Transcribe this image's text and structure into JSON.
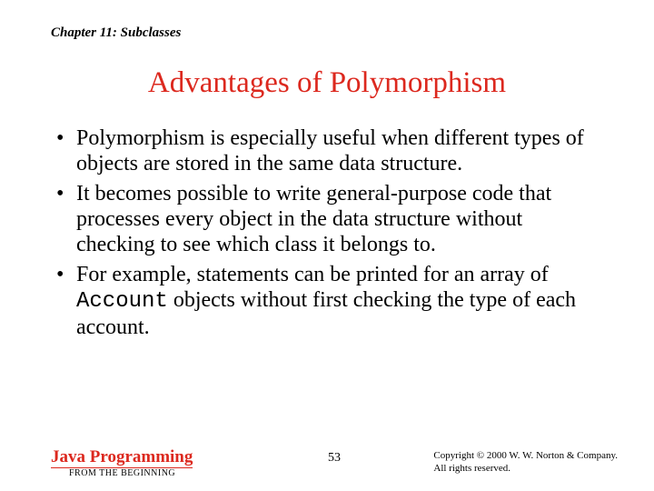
{
  "chapter": "Chapter 11: Subclasses",
  "title": {
    "text": "Advantages of Polymorphism",
    "color": "#dc281e"
  },
  "bullets": [
    {
      "pre": "Polymorphism is especially useful when different types of objects are stored in the same data structure.",
      "mono": "",
      "post": ""
    },
    {
      "pre": "It becomes possible to write general-purpose code that processes every object in the data structure without checking to see which class it belongs to.",
      "mono": "",
      "post": ""
    },
    {
      "pre": "For example, statements can be printed for an array of ",
      "mono": "Account",
      "post": " objects without first checking the type of each account."
    }
  ],
  "brand": {
    "main": "Java Programming",
    "sub": "FROM THE BEGINNING",
    "main_color": "#dc281e",
    "shadow_color": "#f5b24a"
  },
  "page_number": "53",
  "copyright": {
    "line1": "Copyright © 2000 W. W. Norton & Company.",
    "line2": "All rights reserved."
  }
}
